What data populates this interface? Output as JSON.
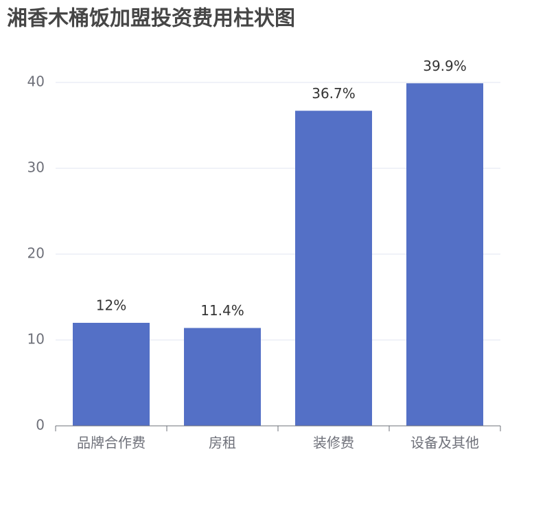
{
  "chart_data": {
    "type": "bar",
    "title": "湘香木桶饭加盟投资费用柱状图",
    "categories": [
      "品牌合作费",
      "房租",
      "装修费",
      "设备及其他"
    ],
    "values": [
      12,
      11.4,
      36.7,
      39.9
    ],
    "value_labels": [
      "12%",
      "11.4%",
      "36.7%",
      "39.9%"
    ],
    "color": "#5470c6",
    "ylim": [
      0,
      40
    ],
    "yticks": [
      0,
      10,
      20,
      30,
      40
    ],
    "grid": true
  }
}
